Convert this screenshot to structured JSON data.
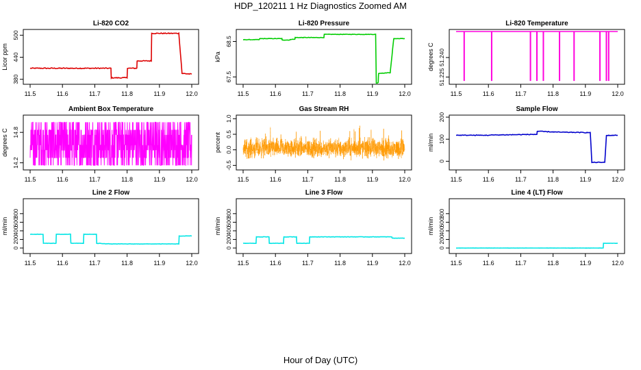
{
  "page": {
    "title": "HDP_120211  1 Hz Diagnostics Zoomed AM",
    "x_caption": "Hour of Day (UTC)"
  },
  "chart_data": [
    {
      "type": "line",
      "title": "Li-820 CO2",
      "ylabel": "Licor ppm",
      "color": "#dd0000",
      "xlim": [
        11.5,
        12.0
      ],
      "ylim": [
        372,
        510
      ],
      "xticks": [
        11.5,
        11.6,
        11.7,
        11.8,
        11.9,
        12.0
      ],
      "yticks": [
        {
          "v": 380,
          "label": "380"
        },
        {
          "v": 440,
          "label": "440"
        },
        {
          "v": 500,
          "label": "500"
        }
      ],
      "x": [
        11.5,
        11.75,
        11.751,
        11.8,
        11.801,
        11.83,
        11.831,
        11.875,
        11.876,
        11.96,
        11.97,
        12.0
      ],
      "y": [
        410,
        410,
        384,
        384,
        410,
        410,
        430,
        430,
        505,
        505,
        396,
        394
      ],
      "noise": 1.2
    },
    {
      "type": "line",
      "title": "Li-820 Pressure",
      "ylabel": "kPa",
      "color": "#00cc00",
      "xlim": [
        11.5,
        12.0
      ],
      "ylim": [
        67.35,
        68.78
      ],
      "xticks": [
        11.5,
        11.6,
        11.7,
        11.8,
        11.9,
        12.0
      ],
      "yticks": [
        {
          "v": 67.5,
          "label": "67.5"
        },
        {
          "v": 68.5,
          "label": "68.5"
        }
      ],
      "x": [
        11.5,
        11.55,
        11.551,
        11.62,
        11.621,
        11.645,
        11.646,
        11.66,
        11.661,
        11.75,
        11.751,
        11.91,
        11.912,
        11.918,
        11.919,
        11.955,
        11.956,
        11.965,
        11.966,
        12.0
      ],
      "y": [
        68.55,
        68.55,
        68.58,
        68.58,
        68.54,
        68.54,
        68.56,
        68.56,
        68.61,
        68.61,
        68.7,
        68.7,
        67.3,
        67.35,
        67.6,
        67.62,
        67.7,
        68.5,
        68.58,
        68.58
      ],
      "noise": 0.006
    },
    {
      "type": "line",
      "title": "Li-820 Temperature",
      "ylabel": "degrees C",
      "color": "#ff00dd",
      "xlim": [
        11.5,
        12.0
      ],
      "ylim": [
        51.221,
        51.26
      ],
      "xticks": [
        11.5,
        11.6,
        11.7,
        11.8,
        11.9,
        12.0
      ],
      "yticks": [
        {
          "v": 51.225,
          "label": "51.225"
        },
        {
          "v": 51.24,
          "label": "51.240"
        }
      ],
      "baseline": 51.26,
      "low": 51.222,
      "dips": [
        11.525,
        11.61,
        11.73,
        11.75,
        11.77,
        11.82,
        11.865,
        11.945,
        11.965,
        11.972
      ]
    },
    {
      "type": "line",
      "title": "Ambient Box Temperature",
      "ylabel": "degrees C",
      "color": "#ff00ff",
      "xlim": [
        11.5,
        12.0
      ],
      "ylim": [
        14.1,
        15.1
      ],
      "xticks": [
        11.5,
        11.6,
        11.7,
        11.8,
        11.9,
        12.0
      ],
      "yticks": [
        {
          "v": 14.2,
          "label": "14.2"
        },
        {
          "v": 14.8,
          "label": "14.8"
        }
      ],
      "levels": [
        14.15,
        14.3,
        14.45,
        14.55,
        14.75,
        14.85,
        15.0
      ],
      "samples": 900
    },
    {
      "type": "scatter",
      "title": "Gas Stream RH",
      "ylabel": "percent",
      "color": "#ff9900",
      "xlim": [
        11.5,
        12.0
      ],
      "ylim": [
        -0.58,
        1.05
      ],
      "xticks": [
        11.5,
        11.6,
        11.7,
        11.8,
        11.9,
        12.0
      ],
      "yticks": [
        {
          "v": -0.5,
          "label": "-0.5"
        },
        {
          "v": 0.0,
          "label": "0.0"
        },
        {
          "v": 0.5,
          "label": "0.5"
        },
        {
          "v": 1.0,
          "label": "1.0"
        }
      ],
      "mean": 0.05,
      "spread": 0.45,
      "samples": 1500
    },
    {
      "type": "line",
      "title": "Sample Flow",
      "ylabel": "ml/min",
      "color": "#0000cc",
      "xlim": [
        11.5,
        12.0
      ],
      "ylim": [
        -30,
        200
      ],
      "xticks": [
        11.5,
        11.6,
        11.7,
        11.8,
        11.9,
        12.0
      ],
      "yticks": [
        {
          "v": 0,
          "label": "0"
        },
        {
          "v": 100,
          "label": "100"
        },
        {
          "v": 200,
          "label": "200"
        }
      ],
      "x": [
        11.5,
        11.6,
        11.61,
        11.75,
        11.751,
        11.8,
        11.82,
        11.915,
        11.92,
        11.96,
        11.965,
        12.0
      ],
      "y": [
        118,
        118,
        119,
        122,
        136,
        133,
        132,
        130,
        -5,
        -5,
        117,
        118
      ],
      "noise": 1.5
    },
    {
      "type": "line",
      "title": "Line 2 Flow",
      "ylabel": "ml/min",
      "color": "#00e5e5",
      "xlim": [
        11.5,
        12.0
      ],
      "ylim": [
        -80,
        1100
      ],
      "xticks": [
        11.5,
        11.6,
        11.7,
        11.8,
        11.9,
        12.0
      ],
      "yticks": [
        {
          "v": 0,
          "label": "0"
        },
        {
          "v": 200,
          "label": "200"
        },
        {
          "v": 400,
          "label": "400"
        },
        {
          "v": 600,
          "label": "600"
        },
        {
          "v": 800,
          "label": "800"
        }
      ],
      "x": [
        11.5,
        11.54,
        11.541,
        11.58,
        11.581,
        11.625,
        11.626,
        11.665,
        11.666,
        11.705,
        11.706,
        11.75,
        11.96,
        11.961,
        12.0
      ],
      "y": [
        320,
        320,
        110,
        110,
        320,
        320,
        110,
        110,
        320,
        320,
        110,
        95,
        95,
        280,
        280
      ],
      "noise": 4
    },
    {
      "type": "line",
      "title": "Line 3 Flow",
      "ylabel": "ml/min",
      "color": "#00e5e5",
      "xlim": [
        11.5,
        12.0
      ],
      "ylim": [
        -80,
        1100
      ],
      "xticks": [
        11.5,
        11.6,
        11.7,
        11.8,
        11.9,
        12.0
      ],
      "yticks": [
        {
          "v": 0,
          "label": "0"
        },
        {
          "v": 200,
          "label": "200"
        },
        {
          "v": 400,
          "label": "400"
        },
        {
          "v": 600,
          "label": "600"
        },
        {
          "v": 800,
          "label": "800"
        }
      ],
      "x": [
        11.5,
        11.54,
        11.541,
        11.58,
        11.581,
        11.625,
        11.626,
        11.665,
        11.666,
        11.705,
        11.706,
        11.96,
        11.961,
        12.0
      ],
      "y": [
        110,
        110,
        260,
        260,
        110,
        110,
        260,
        260,
        110,
        110,
        260,
        260,
        230,
        230
      ],
      "noise": 4
    },
    {
      "type": "line",
      "title": "Line 4 (LT) Flow",
      "ylabel": "ml/min",
      "color": "#00e5e5",
      "xlim": [
        11.5,
        12.0
      ],
      "ylim": [
        -80,
        1100
      ],
      "xticks": [
        11.5,
        11.6,
        11.7,
        11.8,
        11.9,
        12.0
      ],
      "yticks": [
        {
          "v": 0,
          "label": "0"
        },
        {
          "v": 200,
          "label": "200"
        },
        {
          "v": 400,
          "label": "400"
        },
        {
          "v": 600,
          "label": "600"
        },
        {
          "v": 800,
          "label": "800"
        }
      ],
      "x": [
        11.5,
        11.955,
        11.956,
        12.0
      ],
      "y": [
        0,
        0,
        110,
        110
      ],
      "noise": 2
    }
  ]
}
